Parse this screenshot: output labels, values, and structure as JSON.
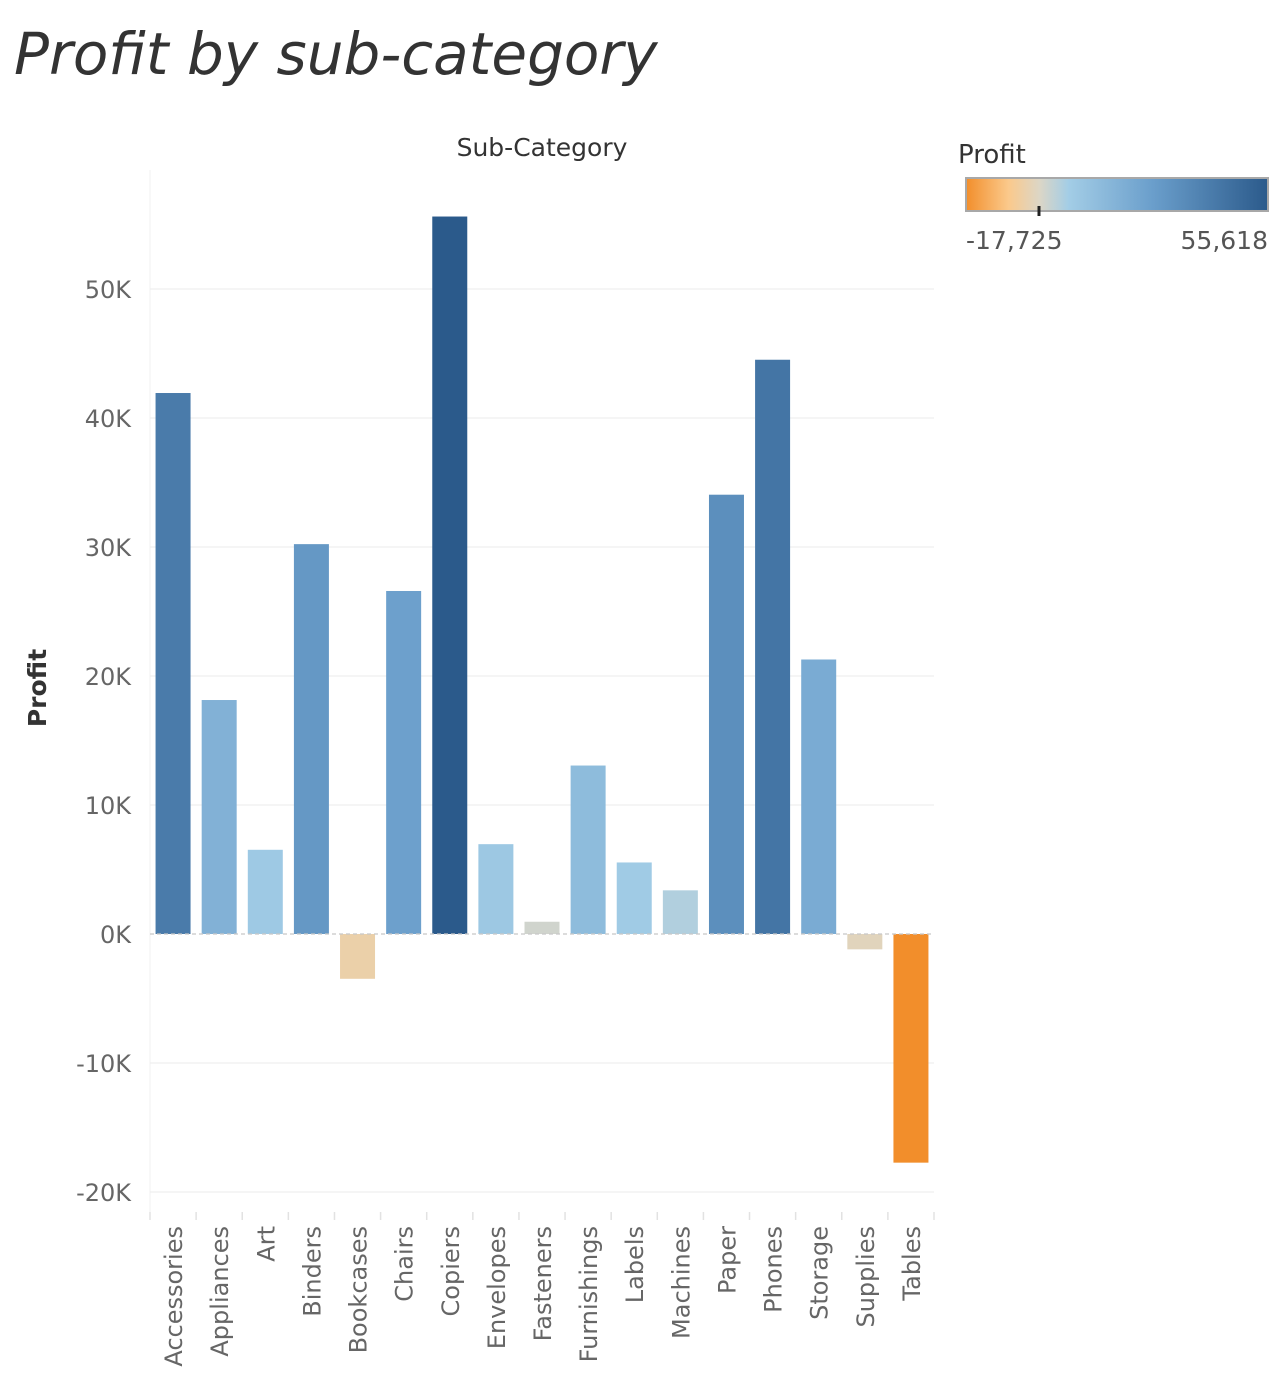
{
  "page": {
    "title": "Profit by sub-category"
  },
  "chart_data": {
    "type": "bar",
    "column_header": "Sub-Category",
    "ylabel": "Profit",
    "xlabel": "",
    "ylim": [
      -21000,
      59500
    ],
    "y_ticks": [
      -20000,
      -10000,
      0,
      10000,
      20000,
      30000,
      40000,
      50000
    ],
    "y_tick_labels": [
      "-20K",
      "-10K",
      "0K",
      "10K",
      "20K",
      "30K",
      "40K",
      "50K"
    ],
    "grid": true,
    "categories": [
      "Accessories",
      "Appliances",
      "Art",
      "Binders",
      "Bookcases",
      "Chairs",
      "Copiers",
      "Envelopes",
      "Fasteners",
      "Furnishings",
      "Labels",
      "Machines",
      "Paper",
      "Phones",
      "Storage",
      "Supplies",
      "Tables"
    ],
    "values": [
      41937,
      18138,
      6528,
      30222,
      -3473,
      26590,
      55618,
      6964,
      950,
      13059,
      5546,
      3385,
      34054,
      44516,
      21279,
      -1189,
      -17725
    ],
    "color_legend": {
      "title": "Profit",
      "min_label": "-17,725",
      "max_label": "55,618",
      "min": -17725,
      "max": 55618,
      "placement": "top-right",
      "colors": {
        "negative_strong": "#f28e2b",
        "negative_light": "#fbc98b",
        "neutral": "#dcd6c6",
        "positive_light": "#a3cde6",
        "positive_mid": "#6a9ecb",
        "positive_strong": "#2b5a8b"
      }
    }
  }
}
